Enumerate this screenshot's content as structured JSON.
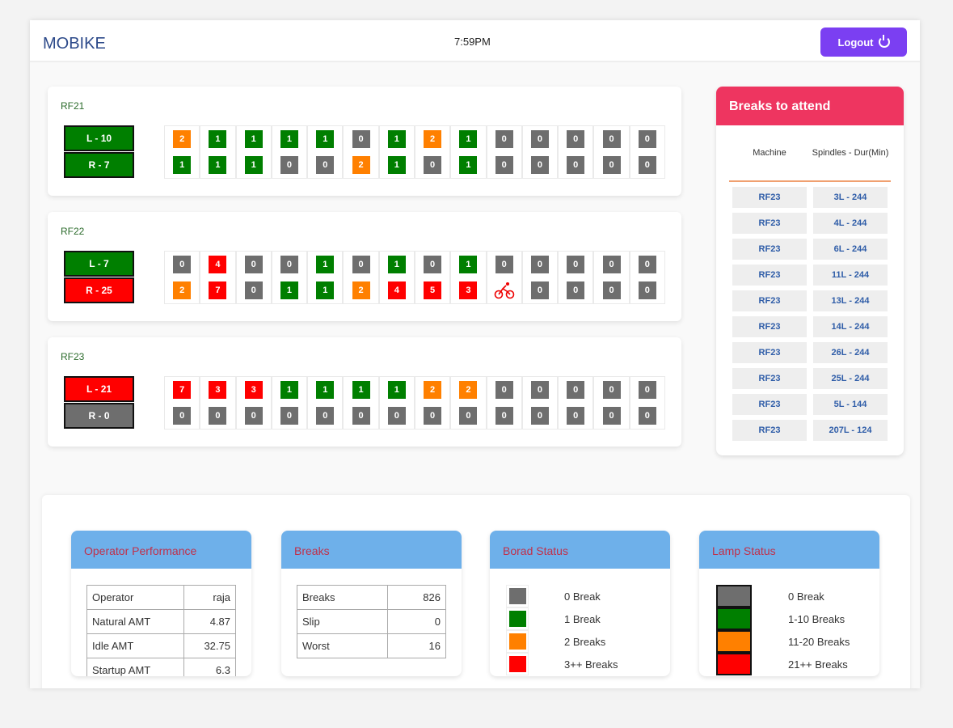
{
  "header": {
    "brand": "MOBIKE",
    "time": "7:59PM",
    "logout_label": "Logout"
  },
  "colors": {
    "gray": "#6e6e6e",
    "green": "#007f00",
    "orange": "#ff8000",
    "red": "#ff0000"
  },
  "machines": [
    {
      "name": "RF21",
      "lamps": [
        {
          "label": "L - 10",
          "status": "green"
        },
        {
          "label": "R - 7",
          "status": "green"
        }
      ],
      "rows": [
        [
          2,
          1,
          1,
          1,
          1,
          0,
          1,
          2,
          1,
          0,
          0,
          0,
          0,
          0
        ],
        [
          1,
          1,
          1,
          0,
          0,
          2,
          1,
          0,
          1,
          0,
          0,
          0,
          0,
          0
        ]
      ]
    },
    {
      "name": "RF22",
      "lamps": [
        {
          "label": "L - 7",
          "status": "green"
        },
        {
          "label": "R - 25",
          "status": "red"
        }
      ],
      "rows": [
        [
          0,
          4,
          0,
          0,
          1,
          0,
          1,
          0,
          1,
          0,
          0,
          0,
          0,
          0
        ],
        [
          2,
          7,
          0,
          1,
          1,
          2,
          4,
          5,
          3,
          "bike",
          0,
          0,
          0,
          0
        ]
      ]
    },
    {
      "name": "RF23",
      "lamps": [
        {
          "label": "L - 21",
          "status": "red"
        },
        {
          "label": "R - 0",
          "status": "gray"
        }
      ],
      "rows": [
        [
          7,
          3,
          3,
          1,
          1,
          1,
          1,
          2,
          2,
          0,
          0,
          0,
          0,
          0
        ],
        [
          0,
          0,
          0,
          0,
          0,
          0,
          0,
          0,
          0,
          0,
          0,
          0,
          0,
          0
        ]
      ]
    }
  ],
  "breaks_to_attend": {
    "title": "Breaks to attend",
    "headers": [
      "Machine",
      "Spindles - Dur(Min)"
    ],
    "rows": [
      [
        "RF23",
        "3L - 244"
      ],
      [
        "RF23",
        "4L - 244"
      ],
      [
        "RF23",
        "6L - 244"
      ],
      [
        "RF23",
        "11L - 244"
      ],
      [
        "RF23",
        "13L - 244"
      ],
      [
        "RF23",
        "14L - 244"
      ],
      [
        "RF23",
        "26L - 244"
      ],
      [
        "RF23",
        "25L - 244"
      ],
      [
        "RF23",
        "5L - 144"
      ],
      [
        "RF23",
        "207L - 124"
      ]
    ]
  },
  "operator_performance": {
    "title": "Operator Performance",
    "rows": [
      [
        "Operator",
        "raja"
      ],
      [
        "Natural AMT",
        "4.87"
      ],
      [
        "Idle AMT",
        "32.75"
      ],
      [
        "Startup AMT",
        "6.3"
      ]
    ]
  },
  "breaks": {
    "title": "Breaks",
    "rows": [
      [
        "Breaks",
        "826"
      ],
      [
        "Slip",
        "0"
      ],
      [
        "Worst",
        "16"
      ]
    ]
  },
  "board_status": {
    "title": "Borad Status",
    "items": [
      {
        "color": "gray",
        "label": "0 Break"
      },
      {
        "color": "green",
        "label": "1 Break"
      },
      {
        "color": "orange",
        "label": "2 Breaks"
      },
      {
        "color": "red",
        "label": "3++ Breaks"
      }
    ]
  },
  "lamp_status": {
    "title": "Lamp Status",
    "items": [
      {
        "color": "gray",
        "label": "0 Break"
      },
      {
        "color": "green",
        "label": "1-10 Breaks"
      },
      {
        "color": "orange",
        "label": "11-20 Breaks"
      },
      {
        "color": "red",
        "label": "21++ Breaks"
      }
    ]
  }
}
